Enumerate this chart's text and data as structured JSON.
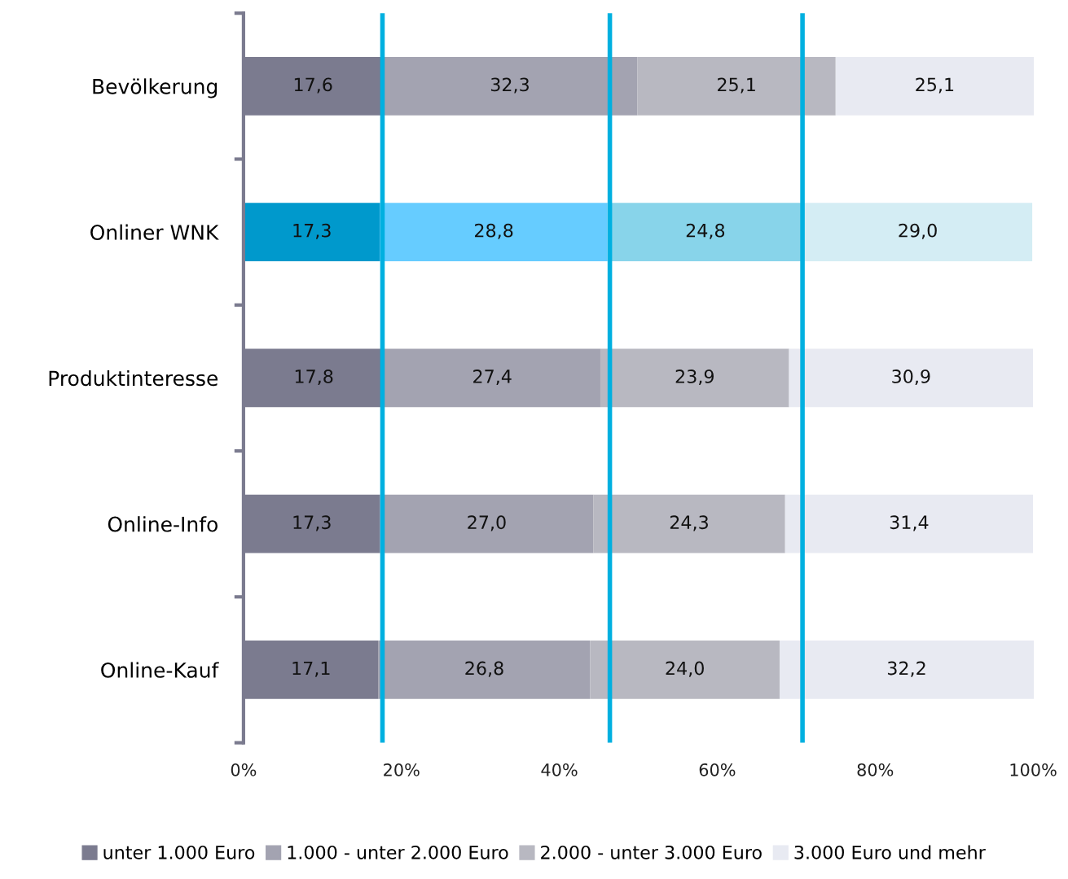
{
  "chart_data": {
    "type": "bar",
    "orientation": "horizontal",
    "stacked": true,
    "categories": [
      "Bevölkerung",
      "Onliner WNK",
      "Produktinteresse",
      "Online-Info",
      "Online-Kauf"
    ],
    "series": [
      {
        "name": "unter 1.000 Euro",
        "color": "#7b7b8f",
        "colors": [
          "#7b7b8f",
          "#0099cc",
          "#7b7b8f",
          "#7b7b8f",
          "#7b7b8f"
        ],
        "values": [
          17.6,
          17.3,
          17.8,
          17.3,
          17.1
        ],
        "value_labels": [
          "17,6",
          "17,3",
          "17,8",
          "17,3",
          "17,1"
        ]
      },
      {
        "name": "1.000 - unter 2.000 Euro",
        "color": "#a3a3b1",
        "colors": [
          "#a3a3b1",
          "#66ccff",
          "#a3a3b1",
          "#a3a3b1",
          "#a3a3b1"
        ],
        "values": [
          32.3,
          28.8,
          27.4,
          27.0,
          26.8
        ],
        "value_labels": [
          "32,3",
          "28,8",
          "27,4",
          "27,0",
          "26,8"
        ]
      },
      {
        "name": "2.000 - unter 3.000 Euro",
        "color": "#b8b8c1",
        "colors": [
          "#b8b8c1",
          "#88d4ea",
          "#b8b8c1",
          "#b8b8c1",
          "#b8b8c1"
        ],
        "values": [
          25.1,
          24.8,
          23.9,
          24.3,
          24.0
        ],
        "value_labels": [
          "25,1",
          "24,8",
          "23,9",
          "24,3",
          "24,0"
        ]
      },
      {
        "name": "3.000 Euro und mehr",
        "color": "#e8eaf2",
        "colors": [
          "#e8eaf2",
          "#d4edf4",
          "#e8eaf2",
          "#e8eaf2",
          "#e8eaf2"
        ],
        "values": [
          25.1,
          29.0,
          30.9,
          31.4,
          32.2
        ],
        "value_labels": [
          "25,1",
          "29,0",
          "30,9",
          "31,4",
          "32,2"
        ]
      }
    ],
    "xlim": [
      0,
      100.1
    ],
    "xticks": [
      {
        "value": 0,
        "label": "0%"
      },
      {
        "value": 20,
        "label": "20%"
      },
      {
        "value": 40,
        "label": "40%"
      },
      {
        "value": 60,
        "label": "60%"
      },
      {
        "value": 80,
        "label": "80%"
      },
      {
        "value": 100,
        "label": "100%"
      }
    ],
    "ref_lines": [
      {
        "axis": "x",
        "value": 17.6,
        "color": "#00b0e0"
      },
      {
        "axis": "x",
        "value": 46.4,
        "color": "#00b0e0"
      },
      {
        "axis": "x",
        "value": 70.8,
        "color": "#00b0e0"
      }
    ],
    "grid": false,
    "legend": "bottom"
  }
}
